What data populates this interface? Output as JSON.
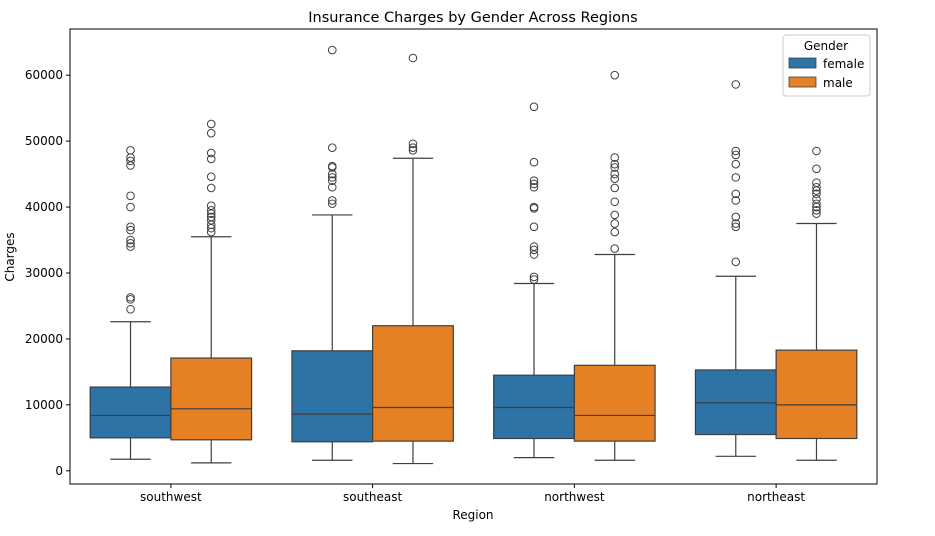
{
  "chart_data": {
    "type": "box",
    "title": "Insurance Charges by Gender Across Regions",
    "xlabel": "Region",
    "ylabel": "Charges",
    "categories": [
      "southwest",
      "southeast",
      "northwest",
      "northeast"
    ],
    "ylim": [
      -2000,
      67000
    ],
    "yticks": [
      0,
      10000,
      20000,
      30000,
      40000,
      50000,
      60000
    ],
    "grid": false,
    "legend": {
      "title": "Gender",
      "placement": "top-right"
    },
    "series": [
      {
        "name": "female",
        "color": "#2e73a6",
        "boxes": [
          {
            "whisker_low": 1750,
            "q1": 5000,
            "median": 8400,
            "q3": 12700,
            "whisker_high": 22600,
            "outliers": [
              24500,
              26000,
              26300,
              34000,
              34500,
              35000,
              36500,
              37000,
              40000,
              41700,
              46300,
              47000,
              47500,
              48600
            ]
          },
          {
            "whisker_low": 1600,
            "q1": 4400,
            "median": 8600,
            "q3": 18200,
            "whisker_high": 38800,
            "outliers": [
              40500,
              41000,
              43000,
              44000,
              44500,
              45000,
              46000,
              46200,
              49000,
              63800
            ]
          },
          {
            "whisker_low": 2000,
            "q1": 4900,
            "median": 9600,
            "q3": 14500,
            "whisker_high": 28400,
            "outliers": [
              29000,
              29400,
              32800,
              33500,
              34000,
              37000,
              39800,
              40000,
              43000,
              43500,
              44000,
              46800,
              55200
            ]
          },
          {
            "whisker_low": 2200,
            "q1": 5500,
            "median": 10300,
            "q3": 15300,
            "whisker_high": 29500,
            "outliers": [
              31700,
              37000,
              37500,
              38500,
              41000,
              42000,
              44500,
              46500,
              47900,
              48500,
              58600
            ]
          }
        ]
      },
      {
        "name": "male",
        "color": "#e58024",
        "boxes": [
          {
            "whisker_low": 1200,
            "q1": 4700,
            "median": 9400,
            "q3": 17100,
            "whisker_high": 35500,
            "outliers": [
              36200,
              36800,
              37300,
              38000,
              38500,
              39000,
              39500,
              40200,
              42900,
              44600,
              47300,
              48200,
              51200,
              52600
            ]
          },
          {
            "whisker_low": 1100,
            "q1": 4500,
            "median": 9600,
            "q3": 22000,
            "whisker_high": 47400,
            "outliers": [
              48600,
              49000,
              49600,
              62600
            ]
          },
          {
            "whisker_low": 1600,
            "q1": 4500,
            "median": 8400,
            "q3": 16000,
            "whisker_high": 32800,
            "outliers": [
              33700,
              36200,
              37500,
              38800,
              40800,
              42900,
              44300,
              45000,
              46000,
              46500,
              47500,
              60000
            ]
          },
          {
            "whisker_low": 1600,
            "q1": 4900,
            "median": 10000,
            "q3": 18300,
            "whisker_high": 37500,
            "outliers": [
              39000,
              39500,
              40000,
              40500,
              41200,
              42000,
              42500,
              43000,
              43700,
              45800,
              48500
            ]
          }
        ]
      }
    ]
  }
}
